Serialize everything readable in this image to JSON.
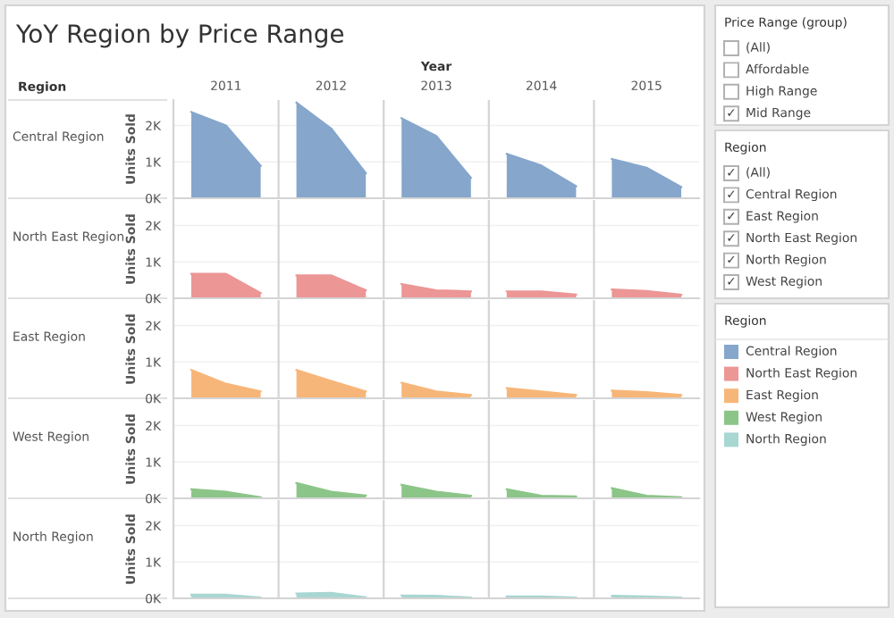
{
  "chart_data": [
    {
      "type": "area",
      "title": "YoY Region by Price Range",
      "xlabel": "Year",
      "ylabel": "Units Sold",
      "annotations": [
        "Region"
      ],
      "x": [
        2010.67,
        2011,
        2011.33,
        2011.5,
        2011.67,
        2012,
        2012.33,
        2012.5,
        2012.67,
        2013,
        2013.33,
        2013.5,
        2013.67,
        2014,
        2014.33,
        2014.5,
        2014.67,
        2015,
        2015.33
      ],
      "xlim": [
        2010.5,
        2015.5
      ],
      "xticks": [
        2011,
        2012,
        2013,
        2014,
        2015
      ],
      "ylim": [
        0,
        2700
      ],
      "yticks": [
        {
          "value": 0,
          "label": "0K"
        },
        {
          "value": 1000,
          "label": "1K"
        },
        {
          "value": 2000,
          "label": "2K"
        }
      ],
      "grid": "y",
      "series": [
        {
          "name": "Central Region",
          "color": "#86a6cc",
          "values": [
            2370,
            2000,
            890,
            null,
            2630,
            1920,
            690,
            null,
            2200,
            1710,
            560,
            null,
            1220,
            900,
            330,
            null,
            1080,
            840,
            310
          ]
        }
      ]
    },
    {
      "type": "area",
      "ylabel": "Units Sold",
      "x": [
        2010.67,
        2011,
        2011.33,
        2011.5,
        2011.67,
        2012,
        2012.33,
        2012.5,
        2012.67,
        2013,
        2013.33,
        2013.5,
        2013.67,
        2014,
        2014.33,
        2014.5,
        2014.67,
        2015,
        2015.33
      ],
      "xlim": [
        2010.5,
        2015.5
      ],
      "xticks": [
        2011,
        2012,
        2013,
        2014,
        2015
      ],
      "tick_labels": "y",
      "ylim": [
        0,
        2700
      ],
      "yticks": [
        {
          "value": 0,
          "label": "0K"
        },
        {
          "value": 1000,
          "label": "1K"
        },
        {
          "value": 2000,
          "label": "2K"
        }
      ],
      "grid": "y",
      "series": [
        {
          "name": "North East Region",
          "color": "#ec9696",
          "values": [
            670,
            670,
            140,
            null,
            630,
            630,
            220,
            null,
            390,
            220,
            190,
            null,
            190,
            190,
            100,
            null,
            240,
            200,
            100
          ]
        }
      ]
    },
    {
      "type": "area",
      "ylabel": "Units Sold",
      "x": [
        2010.67,
        2011,
        2011.33,
        2011.5,
        2011.67,
        2012,
        2012.33,
        2012.5,
        2012.67,
        2013,
        2013.33,
        2013.5,
        2013.67,
        2014,
        2014.33,
        2014.5,
        2014.67,
        2015,
        2015.33
      ],
      "xlim": [
        2010.5,
        2015.5
      ],
      "xticks": [
        2011,
        2012,
        2013,
        2014,
        2015
      ],
      "tick_labels": "y",
      "ylim": [
        0,
        2700
      ],
      "yticks": [
        {
          "value": 0,
          "label": "0K"
        },
        {
          "value": 1000,
          "label": "1K"
        },
        {
          "value": 2000,
          "label": "2K"
        }
      ],
      "grid": "y",
      "series": [
        {
          "name": "East Region",
          "color": "#f7b679",
          "values": [
            780,
            400,
            190,
            null,
            780,
            480,
            190,
            null,
            430,
            190,
            90,
            null,
            280,
            190,
            90,
            null,
            210,
            170,
            90
          ]
        }
      ]
    },
    {
      "type": "area",
      "ylabel": "Units Sold",
      "x": [
        2010.67,
        2011,
        2011.33,
        2011.5,
        2011.67,
        2012,
        2012.33,
        2012.5,
        2012.67,
        2013,
        2013.33,
        2013.5,
        2013.67,
        2014,
        2014.33,
        2014.5,
        2014.67,
        2015,
        2015.33
      ],
      "xlim": [
        2010.5,
        2015.5
      ],
      "xticks": [
        2011,
        2012,
        2013,
        2014,
        2015
      ],
      "tick_labels": "y",
      "ylim": [
        0,
        2700
      ],
      "yticks": [
        {
          "value": 0,
          "label": "0K"
        },
        {
          "value": 1000,
          "label": "1K"
        },
        {
          "value": 2000,
          "label": "2K"
        }
      ],
      "grid": "y",
      "series": [
        {
          "name": "West Region",
          "color": "#8cc588",
          "values": [
            250,
            180,
            30,
            null,
            420,
            180,
            80,
            null,
            370,
            180,
            70,
            null,
            250,
            70,
            50,
            null,
            280,
            70,
            30
          ]
        }
      ]
    },
    {
      "type": "area",
      "ylabel": "Units Sold",
      "x": [
        2010.67,
        2011,
        2011.33,
        2011.5,
        2011.67,
        2012,
        2012.33,
        2012.5,
        2012.67,
        2013,
        2013.33,
        2013.5,
        2013.67,
        2014,
        2014.33,
        2014.5,
        2014.67,
        2015,
        2015.33
      ],
      "xlim": [
        2010.5,
        2015.5
      ],
      "xticks": [
        2011,
        2012,
        2013,
        2014,
        2015
      ],
      "tick_labels": "y",
      "ylim": [
        0,
        2700
      ],
      "yticks": [
        {
          "value": 0,
          "label": "0K"
        },
        {
          "value": 1000,
          "label": "1K"
        },
        {
          "value": 2000,
          "label": "2K"
        }
      ],
      "grid": "y",
      "series": [
        {
          "name": "North Region",
          "color": "#a8d6d1",
          "values": [
            100,
            100,
            20,
            null,
            130,
            150,
            30,
            null,
            80,
            70,
            20,
            null,
            50,
            50,
            20,
            null,
            70,
            50,
            20
          ]
        }
      ]
    },
    {
      "type": "other",
      "title": "Price Range (group)",
      "categories": [
        "(All)",
        "Affordable",
        "High Range",
        "Mid Range"
      ],
      "value_labels": [
        null,
        null,
        null,
        "✓"
      ]
    },
    {
      "type": "other",
      "title": "Region",
      "categories": [
        "(All)",
        "Central Region",
        "East Region",
        "North East Region",
        "North Region",
        "West Region"
      ],
      "value_labels": [
        "✓",
        "✓",
        "✓",
        "✓",
        "✓",
        "✓"
      ]
    },
    {
      "type": "other",
      "title": "Region",
      "categories": [
        "Central Region",
        "North East Region",
        "East Region",
        "West Region",
        "North Region"
      ],
      "colors": [
        "#86a6cc",
        "#ec9696",
        "#f7b679",
        "#8cc588",
        "#a8d6d1"
      ]
    }
  ]
}
